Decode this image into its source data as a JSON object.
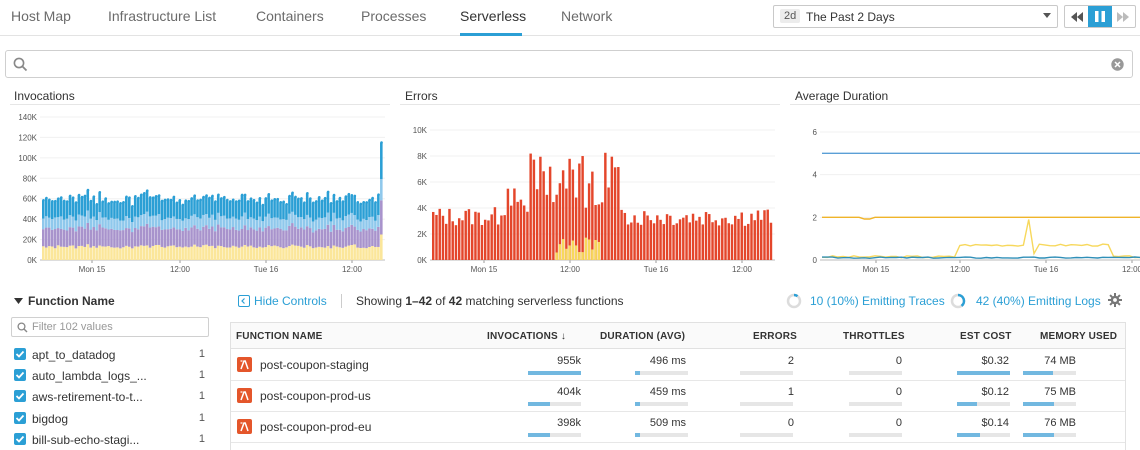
{
  "nav": {
    "tabs": [
      "Host Map",
      "Infrastructure List",
      "Containers",
      "Processes",
      "Serverless",
      "Network"
    ],
    "active_tab": "Serverless",
    "time_badge": "2d",
    "time_label": "The Past 2 Days"
  },
  "search": {
    "placeholder": "",
    "value": ""
  },
  "charts": {
    "invocations": {
      "title": "Invocations",
      "y_ticks": [
        "0K",
        "20K",
        "40K",
        "60K",
        "80K",
        "100K",
        "120K",
        "140K"
      ],
      "x_ticks": [
        "Mon 15",
        "12:00",
        "Tue 16",
        "12:00"
      ]
    },
    "errors": {
      "title": "Errors",
      "y_ticks": [
        "0K",
        "2K",
        "4K",
        "6K",
        "8K",
        "10K"
      ],
      "x_ticks": [
        "Mon 15",
        "12:00",
        "Tue 16",
        "12:00"
      ]
    },
    "duration": {
      "title": "Average Duration",
      "y_ticks": [
        "0",
        "2",
        "4",
        "6"
      ],
      "x_ticks": [
        "Mon 15",
        "12:00",
        "Tue 16",
        "12:00"
      ]
    }
  },
  "chart_data": [
    {
      "type": "area",
      "title": "Invocations",
      "ylim": [
        0,
        140000
      ],
      "x": [
        "Mon 15",
        "12:00",
        "Tue 16",
        "12:00"
      ],
      "series": [
        {
          "color": "#2b9fd5"
        },
        {
          "color": "#8fc8ec"
        },
        {
          "color": "#a893cc"
        },
        {
          "color": "#fbe69a"
        }
      ],
      "approx_total_level": 58000,
      "final_spike": 110000
    },
    {
      "type": "bar",
      "title": "Errors",
      "ylim": [
        0,
        10000
      ],
      "x": [
        "Mon 15",
        "12:00",
        "Tue 16",
        "12:00"
      ],
      "approx_baseline": 3300,
      "approx_peak": 8300,
      "colors": [
        "#e4462b",
        "#f7d85c"
      ]
    },
    {
      "type": "line",
      "title": "Average Duration",
      "ylim": [
        0,
        6
      ],
      "x": [
        "Mon 15",
        "12:00",
        "Tue 16",
        "12:00"
      ],
      "series": [
        {
          "color": "#5a9fd6",
          "level": 5
        },
        {
          "color": "#f0b429",
          "level": 2
        },
        {
          "color": "#f7d85c",
          "level": 0.7
        },
        {
          "color": "#2f8fb8",
          "level": 0.1
        }
      ]
    }
  ],
  "facet": {
    "title": "Function Name",
    "filter_placeholder": "Filter 102 values",
    "items": [
      {
        "label": "apt_to_datadog",
        "count": "1"
      },
      {
        "label": "auto_lambda_logs_...",
        "count": "1"
      },
      {
        "label": "aws-retirement-to-t...",
        "count": "1"
      },
      {
        "label": "bigdog",
        "count": "1"
      },
      {
        "label": "bill-sub-echo-stagi...",
        "count": "1"
      }
    ]
  },
  "controls": {
    "hide_controls": "Hide Controls",
    "showing_prefix": "Showing ",
    "showing_range": "1–42",
    "showing_of": " of ",
    "showing_total": "42",
    "showing_suffix": " matching serverless functions",
    "traces": "10 (10%) Emitting Traces",
    "traces_fraction": 0.1,
    "logs": "42 (40%) Emitting Logs",
    "logs_fraction": 0.4
  },
  "table": {
    "headers": {
      "function_name": "FUNCTION NAME",
      "invocations": "INVOCATIONS",
      "sort_arrow": "↓",
      "duration": "DURATION (AVG)",
      "errors": "ERRORS",
      "throttles": "THROTTLES",
      "est_cost": "EST COST",
      "memory_used": "MEMORY USED"
    },
    "rows": [
      {
        "name": "post-coupon-staging",
        "invocations": "955k",
        "inv_fraction": 1.0,
        "duration": "496 ms",
        "dur_fraction": 0.1,
        "errors": "2",
        "err_fraction": 0.0,
        "throttles": "0",
        "thr_fraction": 0.0,
        "cost": "$0.32",
        "cost_fraction": 1.0,
        "memory": "74 MB",
        "mem_fraction": 0.57
      },
      {
        "name": "post-coupon-prod-us",
        "invocations": "404k",
        "inv_fraction": 0.42,
        "duration": "459 ms",
        "dur_fraction": 0.09,
        "errors": "1",
        "err_fraction": 0.0,
        "throttles": "0",
        "thr_fraction": 0.0,
        "cost": "$0.12",
        "cost_fraction": 0.38,
        "memory": "75 MB",
        "mem_fraction": 0.58
      },
      {
        "name": "post-coupon-prod-eu",
        "invocations": "398k",
        "inv_fraction": 0.42,
        "duration": "509 ms",
        "dur_fraction": 0.1,
        "errors": "0",
        "err_fraction": 0.0,
        "throttles": "0",
        "thr_fraction": 0.0,
        "cost": "$0.14",
        "cost_fraction": 0.44,
        "memory": "76 MB",
        "mem_fraction": 0.58
      }
    ]
  }
}
